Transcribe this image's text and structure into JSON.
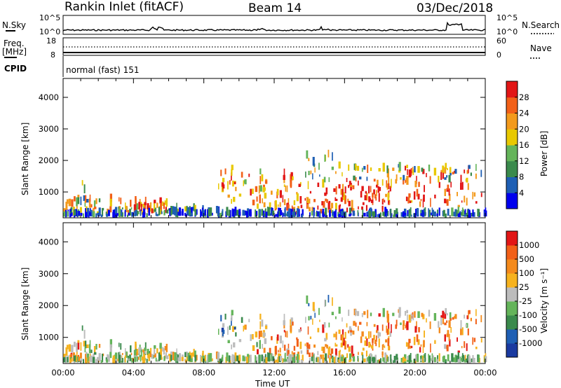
{
  "header": {
    "station": "Rankin Inlet (fitACF)",
    "beam": "Beam 14",
    "date": "03/Dec/2018"
  },
  "colors": {
    "power_scale": [
      "#0000ee",
      "#1e5fb4",
      "#3a8a4c",
      "#64b45a",
      "#e8c800",
      "#f39a1c",
      "#f26018",
      "#e21616"
    ],
    "velocity_scale": [
      "#e21616",
      "#f26018",
      "#f48a1c",
      "#f6b21e",
      "#bcbcbc",
      "#64b45a",
      "#3a8a4c",
      "#1e5fb4",
      "#1a3aa0"
    ]
  },
  "top_panels": {
    "nsky_label": "N.Sky",
    "nsky_ticks": [
      "10^5",
      "10^0"
    ],
    "nsearch_label": "N.Search",
    "nsearch_ticks": [
      "10^5",
      "10^0"
    ],
    "freq_label": "Freq.",
    "freq_unit": "[MHz]",
    "freq_ticks": [
      "18",
      "8"
    ],
    "nave_label": "Nave",
    "nave_ticks": [
      "60",
      "0"
    ],
    "cpid_label": "CPID",
    "cpid_text": "normal (fast) 151"
  },
  "chart_data": [
    {
      "type": "heatmap",
      "title": "",
      "xlabel": "Time UT",
      "ylabel": "Slant Range [km]",
      "x_ticks": [
        "00:00",
        "04:00",
        "08:00",
        "12:00",
        "16:00",
        "20:00",
        "00:00"
      ],
      "y_ticks": [
        "1000",
        "2000",
        "3000",
        "4000"
      ],
      "ylim": [
        180,
        4600
      ],
      "xlim_hours": [
        0,
        24
      ],
      "colorbar_label": "Power [dB]",
      "colorbar_ticks": [
        "4",
        "8",
        "12",
        "16",
        "20",
        "24",
        "28"
      ],
      "colorbar_range": [
        0,
        30
      ]
    },
    {
      "type": "heatmap",
      "title": "",
      "xlabel": "Time UT",
      "ylabel": "Slant Range [km]",
      "x_ticks": [
        "00:00",
        "04:00",
        "08:00",
        "12:00",
        "16:00",
        "20:00",
        "00:00"
      ],
      "y_ticks": [
        "1000",
        "2000",
        "3000",
        "4000"
      ],
      "ylim": [
        180,
        4600
      ],
      "xlim_hours": [
        0,
        24
      ],
      "colorbar_label": "Velocity [m s⁻¹]",
      "colorbar_ticks": [
        "1000",
        "500",
        "100",
        "25",
        "-25",
        "-100",
        "-500",
        "-1000"
      ],
      "colorbar_range": [
        -1000,
        1000
      ]
    }
  ]
}
